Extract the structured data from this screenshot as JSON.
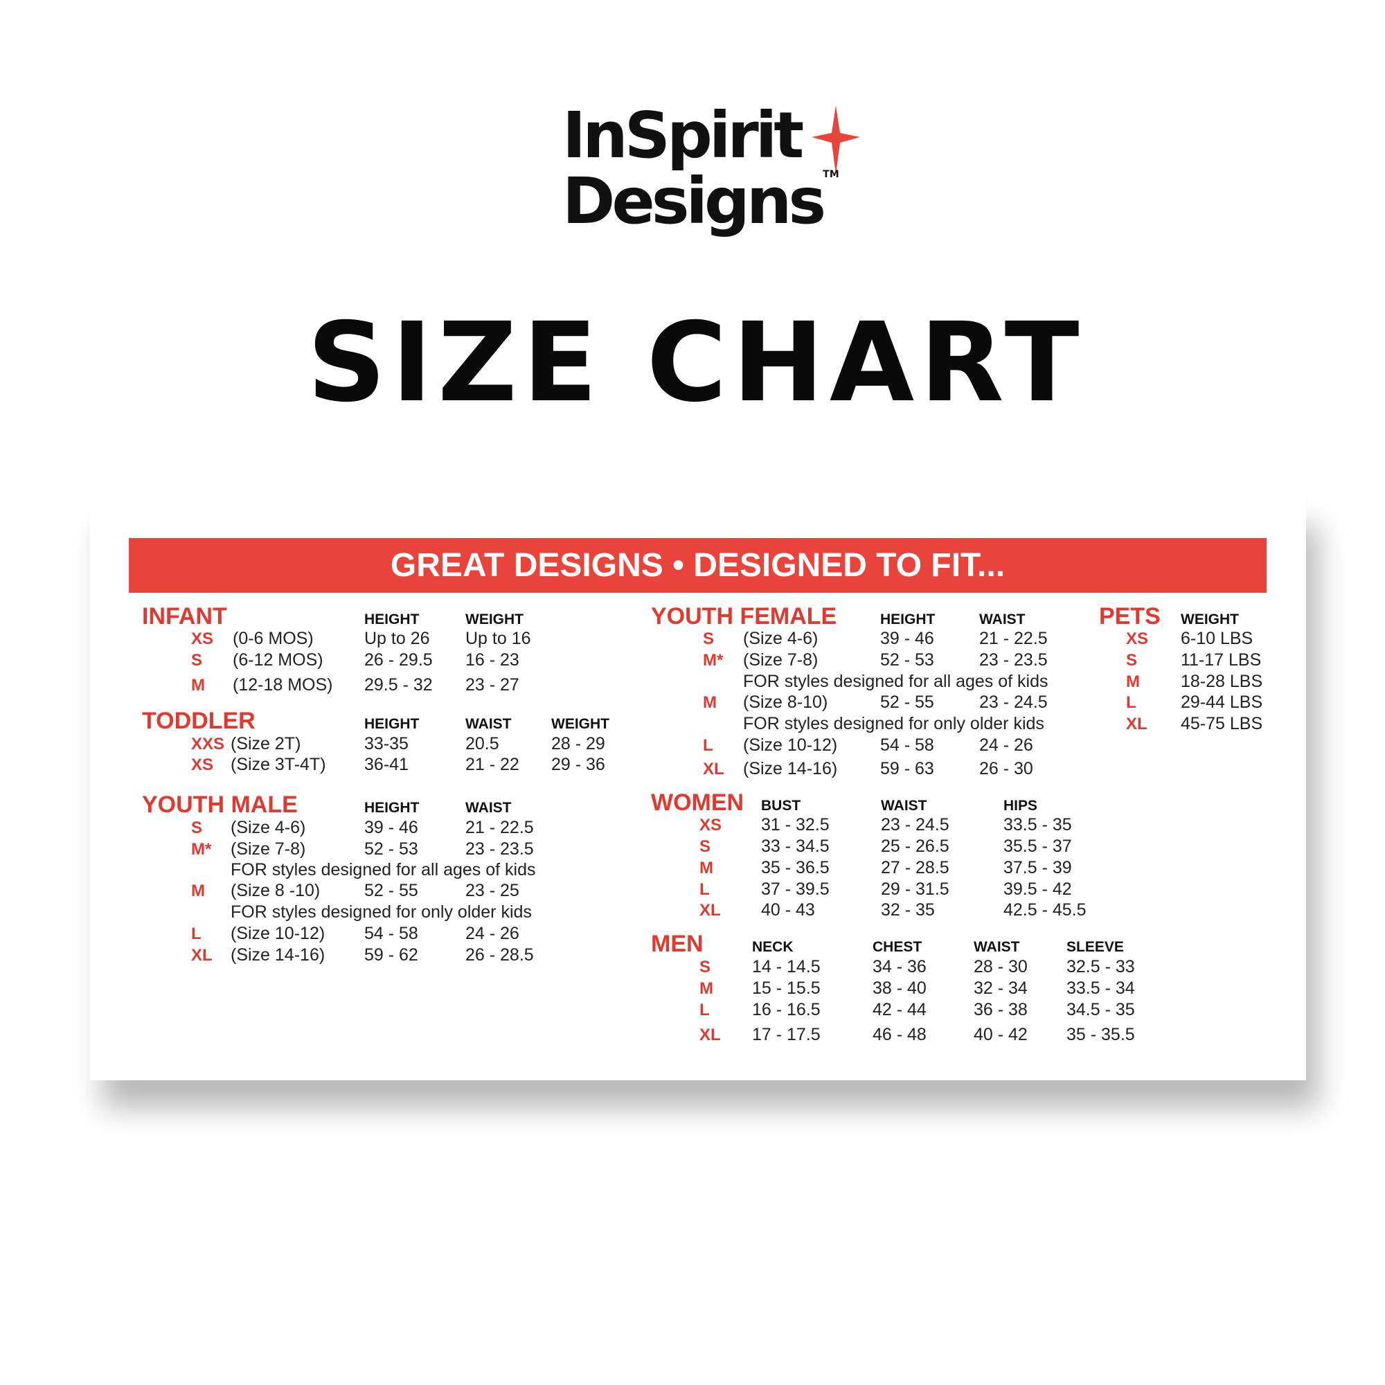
{
  "logo": {
    "line1": "InSpirit",
    "line2": "Designs",
    "trademark": "TM",
    "star_color": "#e9443b"
  },
  "title": "SIZE CHART",
  "banner": "GREAT DESIGNS • DESIGNED TO FIT...",
  "colors": {
    "accent": "#e9443b",
    "text": "#222222"
  },
  "sections": {
    "infant": {
      "title": "INFANT",
      "columns": [
        "HEIGHT",
        "WEIGHT"
      ],
      "rows": [
        {
          "size": "XS",
          "desc": "(0-6 MOS)",
          "values": [
            "Up to 26",
            "Up to 16"
          ]
        },
        {
          "size": "S",
          "desc": "(6-12 MOS)",
          "values": [
            "26 - 29.5",
            "16 - 23"
          ]
        },
        {
          "size": "M",
          "desc": "(12-18 MOS)",
          "values": [
            "29.5 - 32",
            "23 - 27"
          ]
        }
      ]
    },
    "toddler": {
      "title": "TODDLER",
      "columns": [
        "HEIGHT",
        "WAIST",
        "WEIGHT"
      ],
      "rows": [
        {
          "size": "XXS",
          "desc": "(Size 2T)",
          "values": [
            "33-35",
            "20.5",
            "28 - 29"
          ]
        },
        {
          "size": "XS",
          "desc": "(Size 3T-4T)",
          "values": [
            "36-41",
            "21 - 22",
            "29 - 36"
          ]
        }
      ]
    },
    "youth_male": {
      "title": "YOUTH MALE",
      "columns": [
        "HEIGHT",
        "WAIST"
      ],
      "rows": [
        {
          "size": "S",
          "desc": "(Size 4-6)",
          "values": [
            "39 - 46",
            "21 - 22.5"
          ]
        },
        {
          "size": "M*",
          "desc": "(Size 7-8)",
          "values": [
            "52 - 53",
            "23 - 23.5"
          ]
        },
        {
          "note": "FOR styles designed for all ages of kids"
        },
        {
          "size": "M",
          "desc": "(Size 8 -10)",
          "values": [
            "52 - 55",
            "23 - 25"
          ]
        },
        {
          "note": "FOR styles designed for only older kids"
        },
        {
          "size": "L",
          "desc": "(Size 10-12)",
          "values": [
            "54 - 58",
            "24 - 26"
          ]
        },
        {
          "size": "XL",
          "desc": "(Size 14-16)",
          "values": [
            "59 - 62",
            "26 - 28.5"
          ]
        }
      ]
    },
    "youth_female": {
      "title": "YOUTH FEMALE",
      "columns": [
        "HEIGHT",
        "WAIST"
      ],
      "rows": [
        {
          "size": "S",
          "desc": "(Size 4-6)",
          "values": [
            "39 - 46",
            "21 - 22.5"
          ]
        },
        {
          "size": "M*",
          "desc": "(Size 7-8)",
          "values": [
            "52 - 53",
            "23 - 23.5"
          ]
        },
        {
          "note": "FOR styles designed for all ages of kids"
        },
        {
          "size": "M",
          "desc": "(Size 8-10)",
          "values": [
            "52 - 55",
            "23 - 24.5"
          ]
        },
        {
          "note": "FOR styles designed for only older kids"
        },
        {
          "size": "L",
          "desc": "(Size 10-12)",
          "values": [
            "54 - 58",
            "24 - 26"
          ]
        },
        {
          "size": "XL",
          "desc": "(Size 14-16)",
          "values": [
            "59 - 63",
            "26 - 30"
          ]
        }
      ]
    },
    "pets": {
      "title": "PETS",
      "columns": [
        "WEIGHT"
      ],
      "rows": [
        {
          "size": "XS",
          "values": [
            "6-10 LBS"
          ]
        },
        {
          "size": "S",
          "values": [
            "11-17 LBS"
          ]
        },
        {
          "size": "M",
          "values": [
            "18-28 LBS"
          ]
        },
        {
          "size": "L",
          "values": [
            "29-44 LBS"
          ]
        },
        {
          "size": "XL",
          "values": [
            "45-75 LBS"
          ]
        }
      ]
    },
    "women": {
      "title": "WOMEN",
      "columns": [
        "BUST",
        "WAIST",
        "HIPS"
      ],
      "rows": [
        {
          "size": "XS",
          "values": [
            "31 - 32.5",
            "23 - 24.5",
            "33.5 - 35"
          ]
        },
        {
          "size": "S",
          "values": [
            "33 - 34.5",
            "25 - 26.5",
            "35.5 - 37"
          ]
        },
        {
          "size": "M",
          "values": [
            "35 - 36.5",
            "27 - 28.5",
            "37.5 - 39"
          ]
        },
        {
          "size": "L",
          "values": [
            "37 - 39.5",
            "29 - 31.5",
            "39.5 - 42"
          ]
        },
        {
          "size": "XL",
          "values": [
            "40 - 43",
            "32 - 35",
            "42.5 - 45.5"
          ]
        }
      ]
    },
    "men": {
      "title": "MEN",
      "columns": [
        "NECK",
        "CHEST",
        "WAIST",
        "SLEEVE"
      ],
      "rows": [
        {
          "size": "S",
          "values": [
            "14 - 14.5",
            "34 - 36",
            "28 - 30",
            "32.5 - 33"
          ]
        },
        {
          "size": "M",
          "values": [
            "15 - 15.5",
            "38 - 40",
            "32 - 34",
            "33.5 - 34"
          ]
        },
        {
          "size": "L",
          "values": [
            "16 - 16.5",
            "42 - 44",
            "36 - 38",
            "34.5 - 35"
          ]
        },
        {
          "size": "XL",
          "values": [
            "17 - 17.5",
            "46 - 48",
            "40 - 42",
            "35 - 35.5"
          ]
        }
      ]
    }
  }
}
